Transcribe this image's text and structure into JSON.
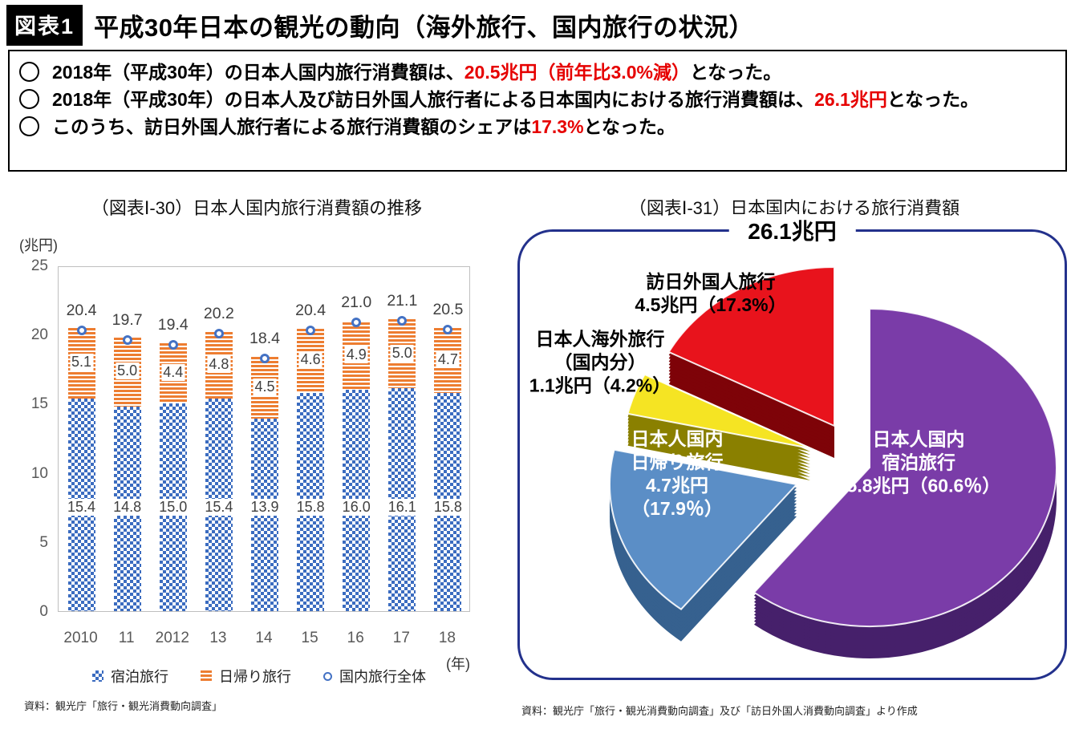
{
  "header": {
    "tag": "図表1",
    "title": "平成30年日本の観光の動向（海外旅行、国内旅行の状況）"
  },
  "summary": {
    "bullets": [
      {
        "pre": "2018年（平成30年）の日本人国内旅行消費額は、",
        "highlight": "20.5兆円（前年比3.0%減）",
        "post": "となった。"
      },
      {
        "pre": "2018年（平成30年）の日本人及び訪日外国人旅行者による日本国内における旅行消費額は、",
        "highlight": "26.1兆円",
        "post": "となった。"
      },
      {
        "pre": "このうち、訪日外国人旅行者による旅行消費額のシェアは",
        "highlight": "17.3%",
        "post": "となった。"
      }
    ]
  },
  "chart_data": [
    {
      "type": "bar",
      "title": "（図表Ⅰ-30）日本人国内旅行消費額の推移",
      "unit_label": "(兆円)",
      "x_axis_suffix": "(年)",
      "categories": [
        "2010",
        "11",
        "2012",
        "13",
        "14",
        "15",
        "16",
        "17",
        "18"
      ],
      "series": [
        {
          "name": "宿泊旅行",
          "marker": "blue-checker",
          "values": [
            15.4,
            14.8,
            15.0,
            15.4,
            13.9,
            15.8,
            16.0,
            16.1,
            15.8
          ]
        },
        {
          "name": "日帰り旅行",
          "marker": "orange-stripes",
          "values": [
            5.1,
            5.0,
            4.4,
            4.8,
            4.5,
            4.6,
            4.9,
            5.0,
            4.7
          ]
        },
        {
          "name": "国内旅行全体",
          "marker": "circle",
          "values": [
            20.4,
            19.7,
            19.4,
            20.2,
            18.4,
            20.4,
            21.0,
            21.1,
            20.5
          ]
        }
      ],
      "ylim": [
        0,
        25
      ],
      "yticks": [
        0,
        5,
        10,
        15,
        20,
        25
      ],
      "grid": false,
      "legend_position": "bottom",
      "source": "資料：観光庁「旅行・観光消費動向調査」"
    },
    {
      "type": "pie",
      "title": "（図表Ⅰ-31）日本国内における旅行消費額",
      "total_label": "26.1兆円",
      "total_value": 26.1,
      "slices": [
        {
          "name": "日本人国内宿泊旅行",
          "label_lines": [
            "日本人国内",
            "宿泊旅行",
            "15.8兆円（60.6％）"
          ],
          "value": 15.8,
          "pct": 60.6,
          "color": "#7a3ca8",
          "side_color": "#46206b",
          "label_color": "#ffffff",
          "explode": [
            16,
            6
          ],
          "label_pos": [
            497,
            288
          ]
        },
        {
          "name": "日本人国内日帰り旅行",
          "label_lines": [
            "日本人国内",
            "日帰り旅行",
            "4.7兆円",
            "（17.9％）"
          ],
          "value": 4.7,
          "pct": 17.9,
          "color": "#5b8ec6",
          "side_color": "#36618f",
          "label_color": "#ffffff",
          "explode": [
            -75,
            27
          ],
          "label_pos": [
            196,
            302
          ]
        },
        {
          "name": "日本人海外旅行（国内分）",
          "label_lines": [
            "日本人海外旅行",
            "（国内分）",
            "1.1兆円（4.2%）"
          ],
          "value": 1.1,
          "pct": 4.2,
          "color": "#f5e423",
          "side_color": "#8a8000",
          "label_color": "#000000",
          "explode": [
            -58,
            -18
          ],
          "label_pos": [
            100,
            163
          ]
        },
        {
          "name": "訪日外国人旅行",
          "label_lines": [
            "訪日外国人旅行",
            "4.5兆円（17.3%）"
          ],
          "value": 4.5,
          "pct": 17.3,
          "color": "#e8131c",
          "side_color": "#7e0308",
          "label_color": "#000000",
          "explode": [
            -28,
            -46
          ],
          "label_pos": [
            238,
            77
          ]
        }
      ],
      "source": "資料：観光庁「旅行・観光消費動向調査」及び「訪日外国人消費動向調査」より作成"
    }
  ],
  "colors": {
    "highlight_red": "#e60000",
    "bar_blue": "#3b6cc0",
    "bar_orange": "#ed7d31",
    "marker_blue": "#4472c4",
    "pie_border_navy": "#23318c",
    "axis_gray": "#595959"
  }
}
